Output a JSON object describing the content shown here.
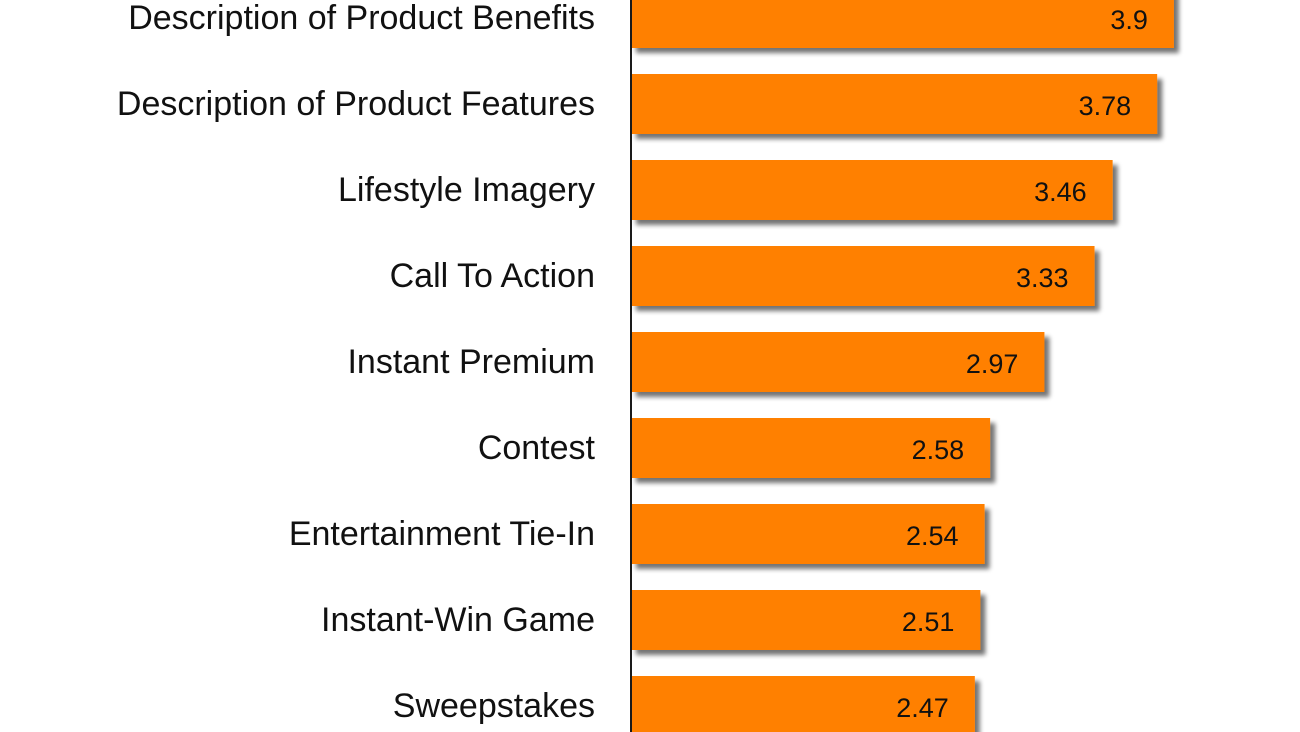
{
  "chart_data": {
    "type": "bar",
    "orientation": "horizontal",
    "categories": [
      "Description of Product Benefits",
      "Description of Product Features",
      "Lifestyle Imagery",
      "Call To Action",
      "Instant Premium",
      "Contest",
      "Entertainment Tie-In",
      "Instant-Win Game",
      "Sweepstakes"
    ],
    "values": [
      3.9,
      3.78,
      3.46,
      3.33,
      2.97,
      2.58,
      2.54,
      2.51,
      2.47
    ],
    "value_labels": [
      "3.9",
      "3.78",
      "3.46",
      "3.33",
      "2.97",
      "2.58",
      "2.54",
      "2.51",
      "2.47"
    ],
    "title": "",
    "xlabel": "",
    "ylabel": "",
    "grid": false,
    "legend": "none"
  },
  "colors": {
    "bar": "#ff8000",
    "bar_shadow": "#8c8c8c",
    "axis": "#1a1a1a",
    "text": "#111111",
    "background": "#ffffff"
  }
}
